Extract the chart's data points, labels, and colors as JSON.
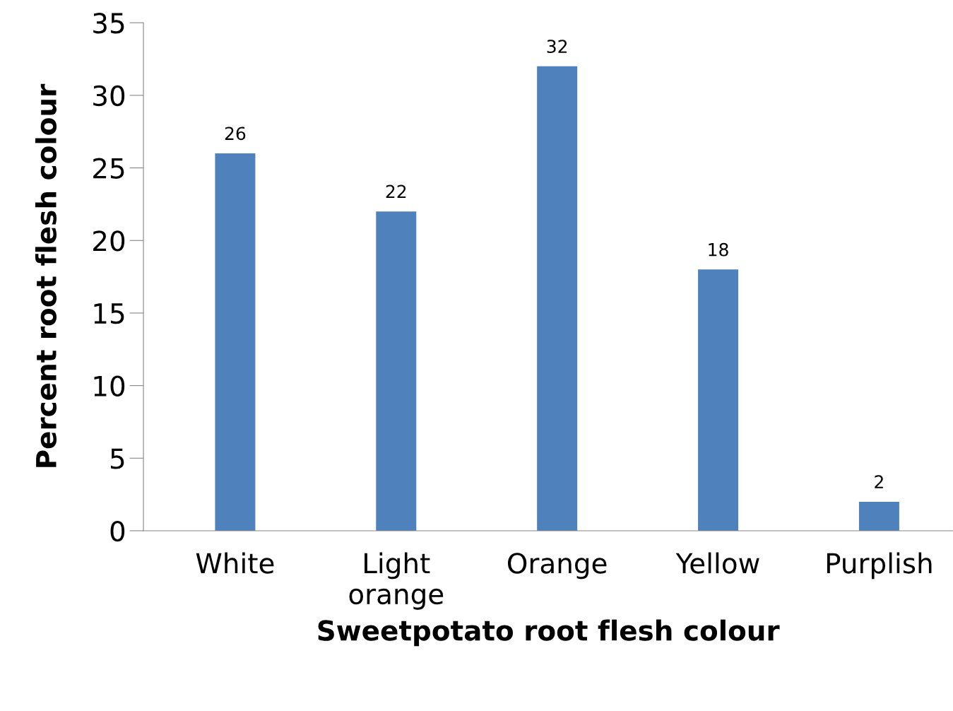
{
  "chart_data": {
    "type": "bar",
    "xlabel": "Sweetpotato root flesh colour",
    "ylabel": "Percent root flesh colour",
    "categories": [
      "White",
      "Light\norange",
      "Orange",
      "Yellow",
      "Purplish"
    ],
    "values": [
      26,
      22,
      32,
      18,
      2
    ],
    "color": "#4f81bd",
    "ylim": [
      0,
      35
    ],
    "yticks": [
      0,
      5,
      10,
      15,
      20,
      25,
      30,
      35
    ],
    "grid": false,
    "data_labels": true,
    "legend": false
  }
}
